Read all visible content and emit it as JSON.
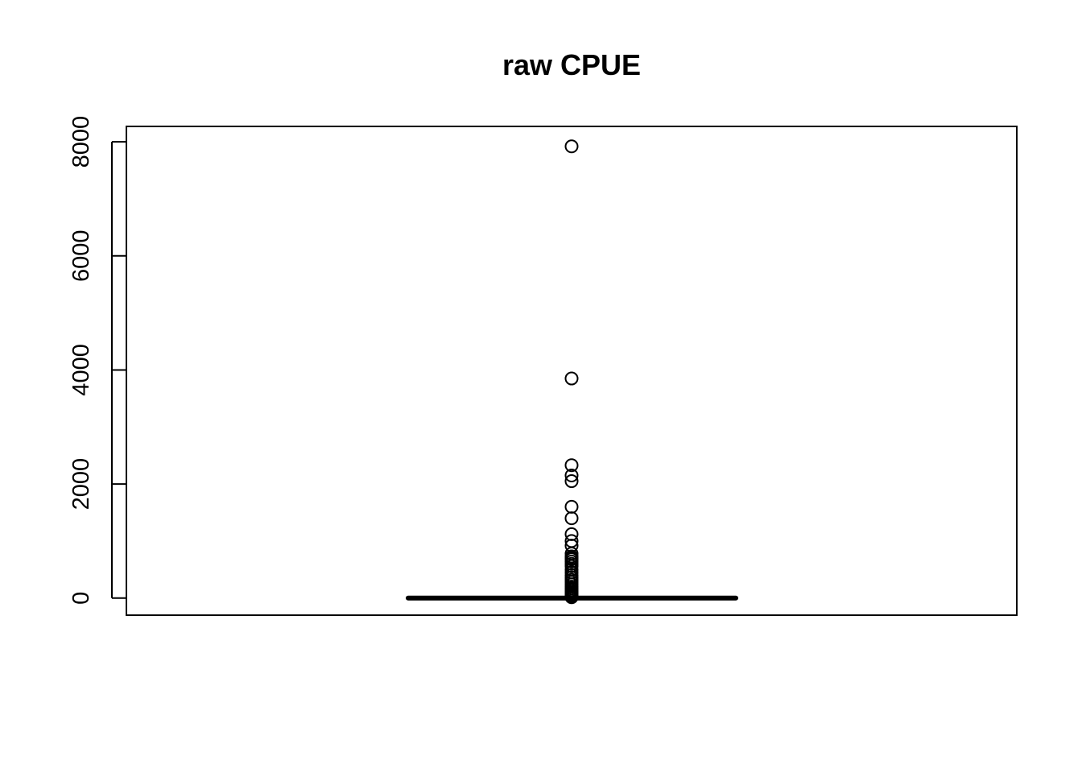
{
  "chart_data": {
    "type": "boxplot",
    "title": "raw CPUE",
    "xlabel": "",
    "ylabel": "",
    "ylim": [
      -300,
      8270
    ],
    "yticks": [
      0,
      2000,
      4000,
      6000,
      8000
    ],
    "ytick_labels": [
      "0",
      "2000",
      "4000",
      "6000",
      "8000"
    ],
    "grid": false,
    "legend": "none",
    "box": {
      "min": 0,
      "q1": 0,
      "median": 0,
      "q3": 0,
      "max": 0
    },
    "outliers": [
      7920,
      3850,
      2330,
      2150,
      2050,
      1600,
      1400,
      1120,
      1000,
      920,
      780,
      730,
      700,
      680,
      640,
      600,
      560,
      500,
      450,
      400,
      360,
      320,
      280,
      240,
      200,
      170,
      140,
      110,
      90,
      70,
      50,
      30,
      15
    ],
    "colors": {
      "stroke": "#000000",
      "background": "#ffffff"
    }
  }
}
